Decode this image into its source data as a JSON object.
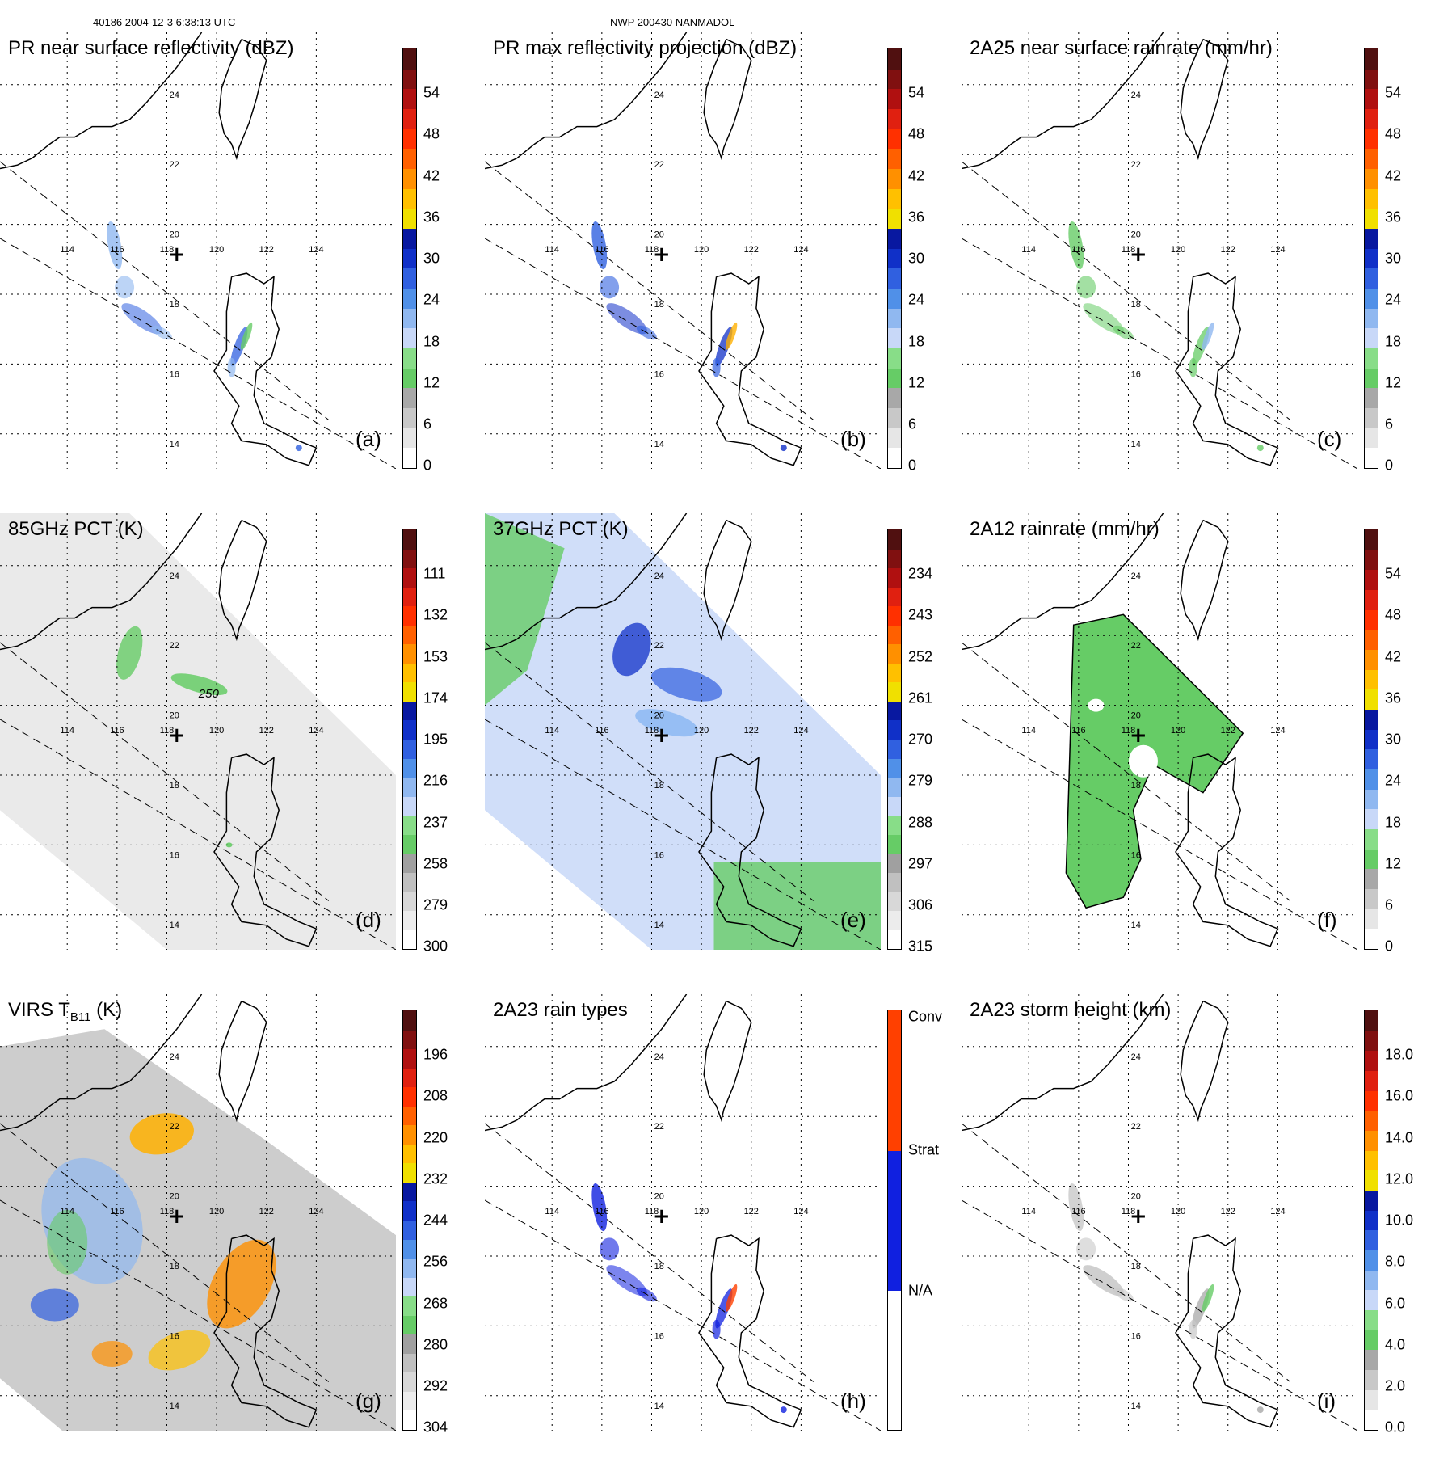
{
  "header": {
    "left": "40186 2004-12-3 6:38:13 UTC",
    "center": "NWP 200430 NANMADOL"
  },
  "map": {
    "lon_ticks": [
      "114",
      "116",
      "118",
      "120",
      "122",
      "124"
    ],
    "lat_ticks": [
      "24",
      "22",
      "20",
      "18",
      "16",
      "14"
    ],
    "storm_center": "+"
  },
  "panels": [
    {
      "id": "a",
      "title": "PR near surface reflectivity (dBZ)",
      "label": "(a)",
      "colorbar_ticks": [
        "54",
        "48",
        "42",
        "36",
        "30",
        "24",
        "18",
        "12",
        "6",
        "0"
      ]
    },
    {
      "id": "b",
      "title": "PR max reflectivity projection (dBZ)",
      "label": "(b)",
      "colorbar_ticks": [
        "54",
        "48",
        "42",
        "36",
        "30",
        "24",
        "18",
        "12",
        "6",
        "0"
      ]
    },
    {
      "id": "c",
      "title": "2A25 near surface rainrate (mm/hr)",
      "label": "(c)",
      "colorbar_ticks": [
        "54",
        "48",
        "42",
        "36",
        "30",
        "24",
        "18",
        "12",
        "6",
        "0"
      ]
    },
    {
      "id": "d",
      "title": "85GHz PCT (K)",
      "label": "(d)",
      "contour_label": "250",
      "colorbar_ticks": [
        "111",
        "132",
        "153",
        "174",
        "195",
        "216",
        "237",
        "258",
        "279",
        "300"
      ]
    },
    {
      "id": "e",
      "title": "37GHz PCT (K)",
      "label": "(e)",
      "colorbar_ticks": [
        "234",
        "243",
        "252",
        "261",
        "270",
        "279",
        "288",
        "297",
        "306",
        "315"
      ]
    },
    {
      "id": "f",
      "title": "2A12 rainrate (mm/hr)",
      "label": "(f)",
      "colorbar_ticks": [
        "54",
        "48",
        "42",
        "36",
        "30",
        "24",
        "18",
        "12",
        "6",
        "0"
      ]
    },
    {
      "id": "g",
      "title": "VIRS T",
      "title_sub": "B11",
      "title_suffix": " (K)",
      "label": "(g)",
      "colorbar_ticks": [
        "196",
        "208",
        "220",
        "232",
        "244",
        "256",
        "268",
        "280",
        "292",
        "304"
      ]
    },
    {
      "id": "h",
      "title": "2A23 rain types",
      "label": "(h)",
      "colorbar_ticks": [
        "Conv",
        "Strat",
        "N/A"
      ]
    },
    {
      "id": "i",
      "title": "2A23 storm height (km)",
      "label": "(i)",
      "colorbar_ticks": [
        "18.0",
        "16.0",
        "14.0",
        "12.0",
        "10.0",
        "8.0",
        "6.0",
        "4.0",
        "2.0",
        "0.0"
      ]
    }
  ],
  "colors": {
    "dbz_scale": [
      "#ffffff",
      "#d0d0d0",
      "#9a9a9a",
      "#66cc66",
      "#c0d0f0",
      "#70a8f0",
      "#3060e0",
      "#1020c0",
      "#f0e000",
      "#ffb000",
      "#ff8000",
      "#ff4000",
      "#e02000",
      "#b01000",
      "#801000",
      "#501000"
    ],
    "rain_types": [
      "#ffffff",
      "#1020e0",
      "#ff4000"
    ],
    "coast": "#000000"
  }
}
